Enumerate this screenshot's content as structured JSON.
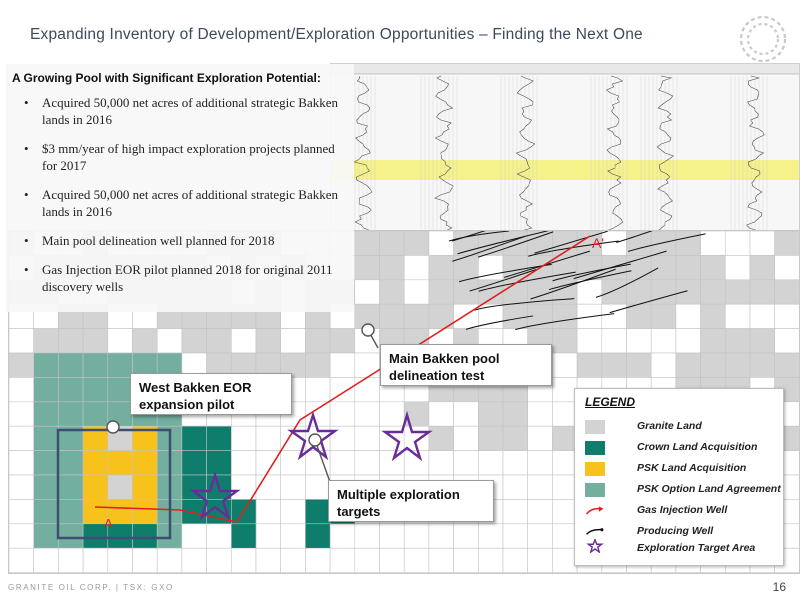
{
  "slide": {
    "title": "Expanding Inventory of Development/Exploration Opportunities – Finding the Next One",
    "footer": "GRANITE OIL CORP. | TSX: GXO",
    "page_number": "16"
  },
  "panel": {
    "heading": "A Growing Pool with Significant Exploration Potential:",
    "bullets": [
      "Acquired 50,000 net acres of additional strategic Bakken lands in 2016",
      "$3 mm/year of high impact exploration projects planned for 2017",
      "Acquired 50,000 net acres of additional strategic Bakken lands in 2016",
      "Main pool delineation well planned for 2018",
      "Gas Injection EOR pilot planned 2018 for original 2011 discovery wells"
    ]
  },
  "map": {
    "label_a": "A",
    "label_a_prime": "A'",
    "callouts": {
      "eor_pilot": "West Bakken EOR expansion pilot",
      "delineation": "Main Bakken pool delineation test",
      "exploration": "Multiple exploration targets"
    }
  },
  "legend": {
    "title": "LEGEND",
    "items": [
      {
        "label": "Granite Land",
        "color": "#d3d3d3",
        "icon": "square"
      },
      {
        "label": "Crown Land Acquisition",
        "color": "#0e7d6b",
        "icon": "square"
      },
      {
        "label": "PSK Land Acquisition",
        "color": "#f7c21b",
        "icon": "square"
      },
      {
        "label": "PSK Option Land Agreement",
        "color": "#73ae9e",
        "icon": "square"
      },
      {
        "label": "Gas Injection Well",
        "color": "#e02020",
        "icon": "well-arrow"
      },
      {
        "label": "Producing Well",
        "color": "#111111",
        "icon": "well-line"
      },
      {
        "label": "Exploration Target Area",
        "color": "#6a2c9a",
        "icon": "star"
      }
    ]
  }
}
